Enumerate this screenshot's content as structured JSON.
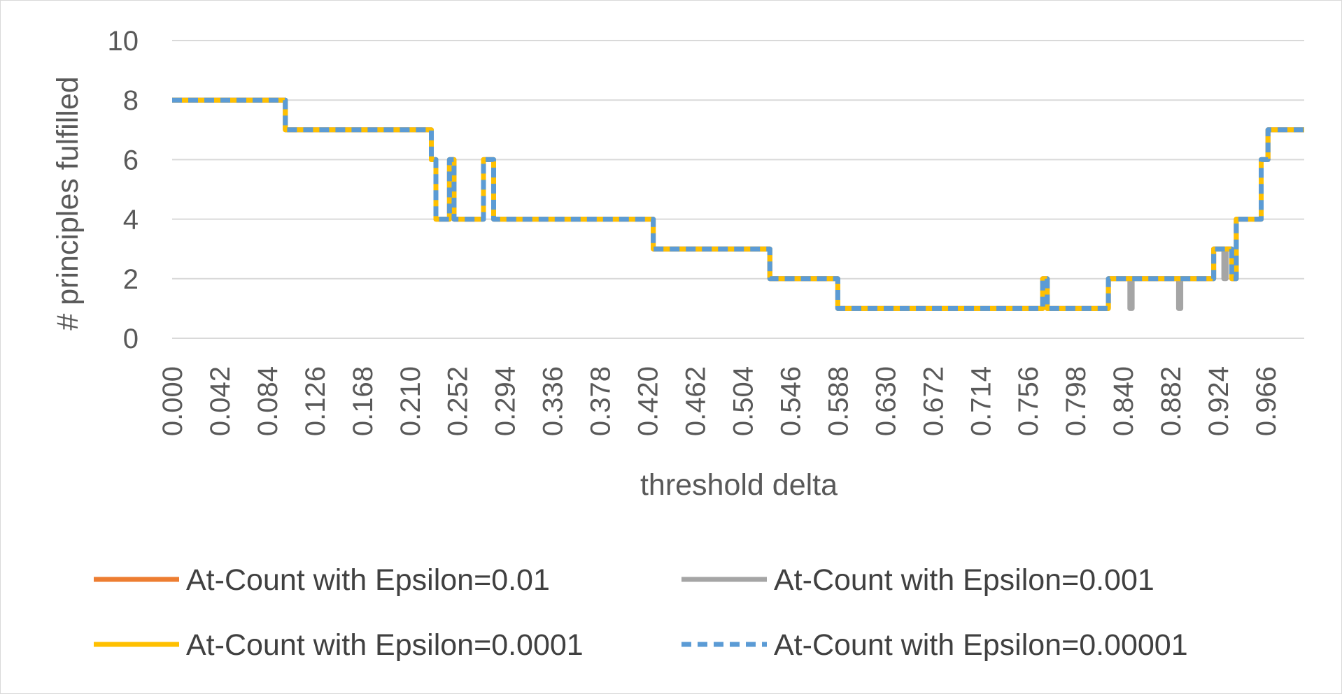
{
  "chart_data": {
    "type": "line",
    "title": "",
    "xlabel": "threshold delta",
    "ylabel": "# principles fulfilled",
    "xlim": [
      0,
      1
    ],
    "ylim": [
      0,
      10
    ],
    "y_ticks": [
      "0",
      "2",
      "4",
      "6",
      "8",
      "10"
    ],
    "x_ticks": [
      "0.000",
      "0.042",
      "0.084",
      "0.126",
      "0.168",
      "0.210",
      "0.252",
      "0.294",
      "0.336",
      "0.378",
      "0.420",
      "0.462",
      "0.504",
      "0.546",
      "0.588",
      "0.630",
      "0.672",
      "0.714",
      "0.756",
      "0.798",
      "0.840",
      "0.882",
      "0.924",
      "0.966"
    ],
    "x_tick_values": [
      0,
      0.042,
      0.084,
      0.126,
      0.168,
      0.21,
      0.252,
      0.294,
      0.336,
      0.378,
      0.42,
      0.462,
      0.504,
      0.546,
      0.588,
      0.63,
      0.672,
      0.714,
      0.756,
      0.798,
      0.84,
      0.882,
      0.924,
      0.966
    ],
    "grid": "horizontal",
    "legend_position": "bottom",
    "series": [
      {
        "name": "At-Count with Epsilon=0.01",
        "color": "#ED7D31",
        "dash": "solid",
        "steps": [
          [
            0,
            8
          ],
          [
            0.1,
            7
          ],
          [
            0.229,
            6
          ],
          [
            0.233,
            4
          ],
          [
            0.245,
            6
          ],
          [
            0.249,
            4
          ],
          [
            0.275,
            6
          ],
          [
            0.284,
            4
          ],
          [
            0.425,
            3
          ],
          [
            0.528,
            2
          ],
          [
            0.588,
            1
          ],
          [
            0.769,
            2
          ],
          [
            0.773,
            1
          ],
          [
            0.827,
            2
          ],
          [
            0.92,
            3
          ],
          [
            0.936,
            2
          ],
          [
            0.94,
            4
          ],
          [
            0.962,
            6
          ],
          [
            0.968,
            7
          ],
          [
            1,
            7
          ]
        ]
      },
      {
        "name": "At-Count with Epsilon=0.001",
        "color": "#A5A5A5",
        "dash": "solid",
        "steps": [
          [
            0,
            8
          ],
          [
            0.1,
            7
          ],
          [
            0.229,
            6
          ],
          [
            0.233,
            4
          ],
          [
            0.245,
            6
          ],
          [
            0.249,
            4
          ],
          [
            0.275,
            6
          ],
          [
            0.284,
            4
          ],
          [
            0.425,
            3
          ],
          [
            0.528,
            2
          ],
          [
            0.588,
            1
          ],
          [
            0.769,
            2
          ],
          [
            0.773,
            1
          ],
          [
            0.827,
            2
          ],
          [
            0.846,
            1
          ],
          [
            0.848,
            2
          ],
          [
            0.889,
            1
          ],
          [
            0.891,
            2
          ],
          [
            0.92,
            3
          ],
          [
            0.929,
            2
          ],
          [
            0.931,
            3
          ],
          [
            0.936,
            2
          ],
          [
            0.94,
            4
          ],
          [
            0.962,
            6
          ],
          [
            0.968,
            7
          ],
          [
            1,
            7
          ]
        ]
      },
      {
        "name": "At-Count with Epsilon=0.0001",
        "color": "#FFC000",
        "dash": "solid",
        "steps": [
          [
            0,
            8
          ],
          [
            0.1,
            7
          ],
          [
            0.229,
            6
          ],
          [
            0.233,
            4
          ],
          [
            0.245,
            6
          ],
          [
            0.249,
            4
          ],
          [
            0.275,
            6
          ],
          [
            0.284,
            4
          ],
          [
            0.425,
            3
          ],
          [
            0.528,
            2
          ],
          [
            0.588,
            1
          ],
          [
            0.769,
            2
          ],
          [
            0.773,
            1
          ],
          [
            0.827,
            2
          ],
          [
            0.92,
            3
          ],
          [
            0.936,
            2
          ],
          [
            0.94,
            4
          ],
          [
            0.962,
            6
          ],
          [
            0.968,
            7
          ],
          [
            1,
            7
          ]
        ]
      },
      {
        "name": "At-Count with Epsilon=0.00001",
        "color": "#5B9BD5",
        "dash": "dashed",
        "steps": [
          [
            0,
            8
          ],
          [
            0.1,
            7
          ],
          [
            0.229,
            6
          ],
          [
            0.233,
            4
          ],
          [
            0.245,
            6
          ],
          [
            0.249,
            4
          ],
          [
            0.275,
            6
          ],
          [
            0.284,
            4
          ],
          [
            0.425,
            3
          ],
          [
            0.528,
            2
          ],
          [
            0.588,
            1
          ],
          [
            0.769,
            2
          ],
          [
            0.773,
            1
          ],
          [
            0.827,
            2
          ],
          [
            0.92,
            3
          ],
          [
            0.936,
            2
          ],
          [
            0.94,
            4
          ],
          [
            0.962,
            6
          ],
          [
            0.968,
            7
          ],
          [
            1,
            7
          ]
        ]
      }
    ]
  }
}
